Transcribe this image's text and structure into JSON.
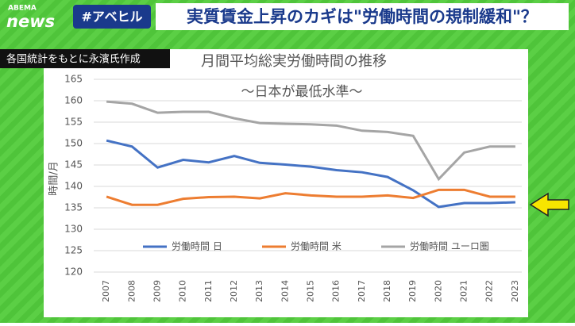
{
  "header": {
    "logo_top": "ABEMA",
    "logo": "news",
    "hashtag": "#アベヒル",
    "title": "実質賃金上昇のカギは\"労働時間の規制緩和\"？"
  },
  "source_note": "各国統計をもとに永濱氏作成",
  "chart_data": {
    "type": "line",
    "title": "月間平均総実労働時間の推移",
    "subtitle": "〜日本が最低水準〜",
    "y_label": "時間/月",
    "categories": [
      "2007",
      "2008",
      "2009",
      "2010",
      "2011",
      "2012",
      "2013",
      "2014",
      "2015",
      "2016",
      "2017",
      "2018",
      "2019",
      "2020",
      "2021",
      "2022",
      "2023"
    ],
    "series": [
      {
        "name": "労働時間 日",
        "color": "#4472c4",
        "values": [
          150.7,
          149.3,
          144.4,
          146.2,
          145.6,
          147.1,
          145.5,
          145.1,
          144.6,
          143.8,
          143.3,
          142.2,
          139.1,
          135.2,
          136.1,
          136.1,
          136.3
        ]
      },
      {
        "name": "労働時間 米",
        "color": "#ed7d31",
        "values": [
          137.6,
          135.7,
          135.7,
          137.1,
          137.5,
          137.6,
          137.2,
          138.4,
          137.9,
          137.6,
          137.6,
          137.9,
          137.3,
          139.2,
          139.2,
          137.6,
          137.6
        ]
      },
      {
        "name": "労働時間 ユーロ圏",
        "color": "#a5a5a5",
        "values": [
          159.8,
          159.3,
          157.2,
          157.4,
          157.4,
          155.9,
          154.8,
          154.6,
          154.5,
          154.2,
          153.0,
          152.7,
          151.8,
          141.7,
          147.9,
          149.3,
          149.3
        ]
      }
    ],
    "ylim": [
      120,
      165
    ],
    "yticks": [
      120,
      125,
      130,
      135,
      140,
      145,
      150,
      155,
      160,
      165
    ],
    "grid": true,
    "legend": "bottom"
  }
}
